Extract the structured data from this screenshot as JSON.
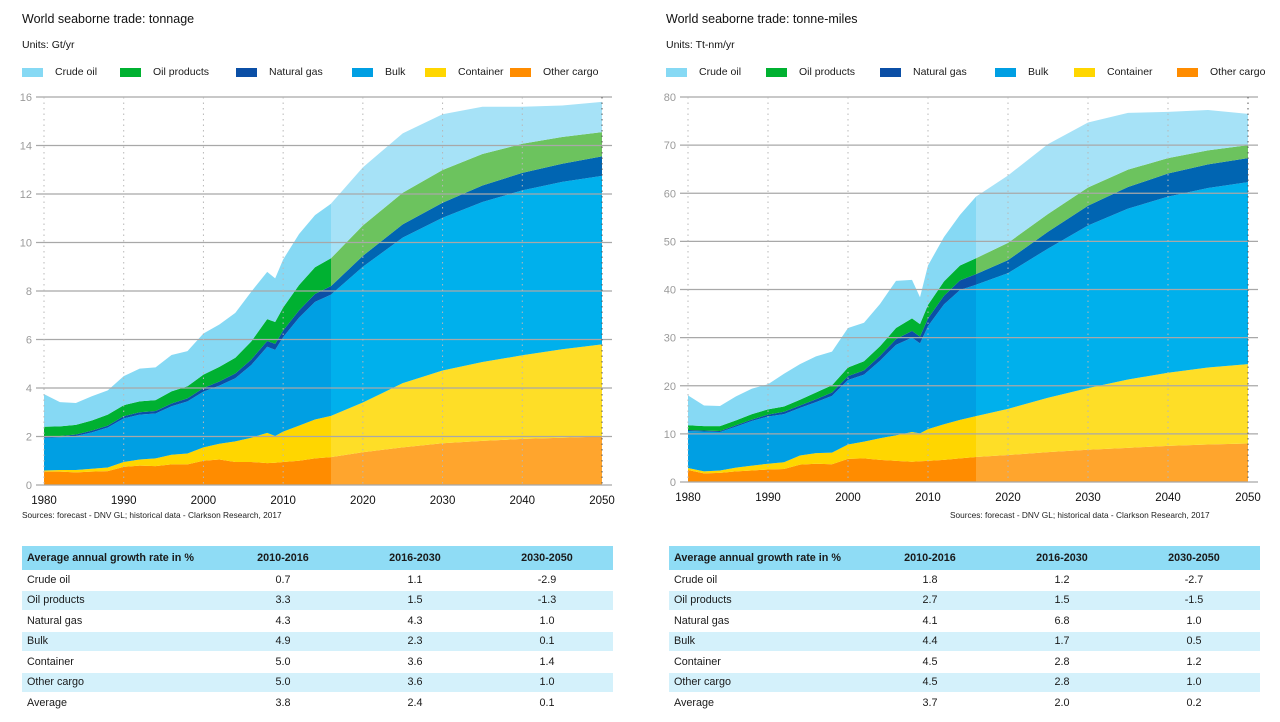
{
  "legend": [
    {
      "key": "crude",
      "label": "Crude oil",
      "color": "#86d9f4"
    },
    {
      "key": "oilprod",
      "label": "Oil products",
      "color": "#00b131"
    },
    {
      "key": "gas",
      "label": "Natural gas",
      "color": "#0b4fa6"
    },
    {
      "key": "bulk",
      "label": "Bulk",
      "color": "#009fe3"
    },
    {
      "key": "container",
      "label": "Container",
      "color": "#ffd600"
    },
    {
      "key": "other",
      "label": "Other cargo",
      "color": "#ff8c00"
    }
  ],
  "forecast_colors": {
    "crude": "#a6e2f7",
    "oilprod": "#6cc35e",
    "gas": "#0065b2",
    "bulk": "#00b0ec",
    "container": "#fede27",
    "other": "#ffa52d"
  },
  "left": {
    "title": "World seaborne trade: tonnage",
    "units": "Units: Gt/yr",
    "source": "Sources: forecast - DNV GL; historical data - Clarkson Research, 2017",
    "table": {
      "headers": [
        "Average annual growth rate in %",
        "2010-2016",
        "2016-2030",
        "2030-2050"
      ],
      "rows": [
        [
          "Crude oil",
          "0.7",
          "1.1",
          "-2.9"
        ],
        [
          "Oil products",
          "3.3",
          "1.5",
          "-1.3"
        ],
        [
          "Natural gas",
          "4.3",
          "4.3",
          "1.0"
        ],
        [
          "Bulk",
          "4.9",
          "2.3",
          "0.1"
        ],
        [
          "Container",
          "5.0",
          "3.6",
          "1.4"
        ],
        [
          "Other cargo",
          "5.0",
          "3.6",
          "1.0"
        ],
        [
          "Average",
          "3.8",
          "2.4",
          "0.1"
        ]
      ]
    }
  },
  "right": {
    "title": "World seaborne trade: tonne-miles",
    "units": "Units: Tt-nm/yr",
    "source": "Sources: forecast - DNV GL; historical data - Clarkson Research, 2017",
    "table": {
      "headers": [
        "Average annual growth rate in %",
        "2010-2016",
        "2016-2030",
        "2030-2050"
      ],
      "rows": [
        [
          "Crude oil",
          "1.8",
          "1.2",
          "-2.7"
        ],
        [
          "Oil products",
          "2.7",
          "1.5",
          "-1.5"
        ],
        [
          "Natural gas",
          "4.1",
          "6.8",
          "1.0"
        ],
        [
          "Bulk",
          "4.4",
          "1.7",
          "0.5"
        ],
        [
          "Container",
          "4.5",
          "2.8",
          "1.2"
        ],
        [
          "Other cargo",
          "4.5",
          "2.8",
          "1.0"
        ],
        [
          "Average",
          "3.7",
          "2.0",
          "0.2"
        ]
      ]
    }
  },
  "chart_data": [
    {
      "type": "area",
      "stacked": true,
      "title": "World seaborne trade: tonnage",
      "ylabel": "Gt/yr",
      "xlabel": "",
      "xlim": [
        1980,
        2050
      ],
      "ylim": [
        0,
        16
      ],
      "xticks": [
        1980,
        1990,
        2000,
        2010,
        2020,
        2030,
        2040,
        2050
      ],
      "yticks": [
        0,
        2,
        4,
        6,
        8,
        10,
        12,
        14,
        16
      ],
      "grid": "horizontal solid, vertical dotted",
      "forecast_start": 2016,
      "legend_position": "top",
      "x": [
        1980,
        1982,
        1984,
        1986,
        1988,
        1990,
        1992,
        1994,
        1996,
        1998,
        2000,
        2002,
        2004,
        2006,
        2008,
        2009,
        2010,
        2012,
        2014,
        2016,
        2020,
        2025,
        2030,
        2035,
        2040,
        2045,
        2050
      ],
      "series": [
        {
          "name": "Other cargo",
          "values": [
            0.55,
            0.55,
            0.52,
            0.55,
            0.57,
            0.75,
            0.8,
            0.78,
            0.85,
            0.85,
            1.0,
            1.05,
            0.95,
            0.95,
            0.9,
            0.92,
            0.95,
            1.0,
            1.1,
            1.15,
            1.35,
            1.55,
            1.72,
            1.82,
            1.9,
            1.95,
            2.0
          ]
        },
        {
          "name": "Container",
          "values": [
            0.05,
            0.07,
            0.1,
            0.12,
            0.15,
            0.2,
            0.25,
            0.32,
            0.4,
            0.45,
            0.55,
            0.65,
            0.85,
            1.0,
            1.25,
            1.1,
            1.25,
            1.45,
            1.6,
            1.7,
            2.05,
            2.65,
            3.0,
            3.25,
            3.45,
            3.65,
            3.8
          ]
        },
        {
          "name": "Bulk",
          "values": [
            1.35,
            1.35,
            1.4,
            1.5,
            1.65,
            1.8,
            1.85,
            1.85,
            2.0,
            2.15,
            2.3,
            2.4,
            2.6,
            3.0,
            3.55,
            3.55,
            3.9,
            4.45,
            4.85,
            5.0,
            5.6,
            6.0,
            6.3,
            6.6,
            6.8,
            6.9,
            6.95
          ]
        },
        {
          "name": "Natural gas",
          "values": [
            0.05,
            0.05,
            0.06,
            0.07,
            0.08,
            0.09,
            0.1,
            0.1,
            0.11,
            0.12,
            0.15,
            0.17,
            0.2,
            0.22,
            0.24,
            0.25,
            0.27,
            0.3,
            0.33,
            0.35,
            0.45,
            0.55,
            0.62,
            0.68,
            0.72,
            0.75,
            0.8
          ]
        },
        {
          "name": "Oil products",
          "values": [
            0.4,
            0.4,
            0.4,
            0.42,
            0.45,
            0.45,
            0.45,
            0.45,
            0.5,
            0.5,
            0.55,
            0.6,
            0.65,
            0.75,
            0.9,
            0.9,
            0.95,
            1.05,
            1.1,
            1.15,
            1.25,
            1.3,
            1.35,
            1.3,
            1.2,
            1.1,
            1.0
          ]
        },
        {
          "name": "Crude oil",
          "values": [
            1.35,
            1.0,
            0.9,
            1.0,
            1.0,
            1.2,
            1.35,
            1.35,
            1.5,
            1.45,
            1.7,
            1.75,
            1.85,
            2.05,
            1.95,
            1.8,
            1.98,
            2.1,
            2.15,
            2.25,
            2.4,
            2.45,
            2.3,
            1.95,
            1.53,
            1.3,
            1.25
          ]
        }
      ],
      "source": "Sources: forecast - DNV GL; historical data - Clarkson Research, 2017"
    },
    {
      "type": "area",
      "stacked": true,
      "title": "World seaborne trade: tonne-miles",
      "ylabel": "Tt-nm/yr",
      "xlabel": "",
      "xlim": [
        1980,
        2050
      ],
      "ylim": [
        0,
        80
      ],
      "xticks": [
        1980,
        1990,
        2000,
        2010,
        2020,
        2030,
        2040,
        2050
      ],
      "yticks": [
        0,
        10,
        20,
        30,
        40,
        50,
        60,
        70,
        80
      ],
      "grid": "horizontal solid, vertical dotted",
      "forecast_start": 2016,
      "legend_position": "top",
      "x": [
        1980,
        1982,
        1984,
        1986,
        1988,
        1990,
        1992,
        1994,
        1996,
        1998,
        2000,
        2002,
        2004,
        2006,
        2008,
        2009,
        2010,
        2012,
        2014,
        2016,
        2020,
        2025,
        2030,
        2035,
        2040,
        2045,
        2050
      ],
      "series": [
        {
          "name": "Other cargo",
          "values": [
            2.5,
            1.8,
            1.9,
            2.2,
            2.4,
            2.6,
            2.7,
            3.6,
            3.8,
            3.7,
            4.8,
            4.9,
            4.6,
            4.4,
            4.2,
            4.3,
            4.4,
            4.6,
            4.9,
            5.2,
            5.6,
            6.2,
            6.7,
            7.1,
            7.5,
            7.8,
            8.0
          ]
        },
        {
          "name": "Container",
          "values": [
            0.4,
            0.4,
            0.5,
            0.8,
            1.0,
            1.2,
            1.4,
            1.9,
            2.2,
            2.4,
            3.0,
            3.5,
            4.5,
            5.3,
            6.2,
            5.8,
            6.6,
            7.4,
            8.0,
            8.5,
            9.6,
            11.3,
            12.8,
            14.2,
            15.2,
            16.0,
            16.5
          ]
        },
        {
          "name": "Bulk",
          "values": [
            7.7,
            8.3,
            8.0,
            8.5,
            9.3,
            9.8,
            10.0,
            9.9,
            10.6,
            11.8,
            13.4,
            13.9,
            16.1,
            18.8,
            19.6,
            18.7,
            21.4,
            24.9,
            27.0,
            27.3,
            28.2,
            31.0,
            33.8,
            35.5,
            36.6,
            37.3,
            37.8
          ]
        },
        {
          "name": "Natural gas",
          "values": [
            0.2,
            0.2,
            0.2,
            0.3,
            0.3,
            0.4,
            0.5,
            0.5,
            0.6,
            0.7,
            0.8,
            0.9,
            1.0,
            1.2,
            1.4,
            1.4,
            1.6,
            1.8,
            2.0,
            2.2,
            2.7,
            3.5,
            4.1,
            4.5,
            4.8,
            4.9,
            5.0
          ]
        },
        {
          "name": "Oil products",
          "values": [
            1.0,
            0.9,
            1.0,
            1.0,
            1.1,
            1.1,
            1.1,
            1.2,
            1.4,
            1.5,
            1.8,
            1.9,
            2.0,
            2.3,
            2.6,
            2.6,
            2.8,
            3.0,
            3.1,
            3.3,
            3.6,
            3.7,
            3.8,
            3.6,
            3.2,
            2.9,
            2.7
          ]
        },
        {
          "name": "Crude oil",
          "values": [
            6.2,
            4.3,
            4.2,
            5.0,
            5.3,
            5.2,
            6.8,
            7.4,
            7.5,
            7.0,
            8.2,
            8.0,
            8.8,
            9.8,
            8.0,
            5.6,
            8.2,
            9.2,
            10.5,
            12.8,
            14.0,
            14.5,
            13.5,
            11.8,
            9.6,
            8.4,
            6.5
          ]
        }
      ],
      "source": "Sources: forecast - DNV GL; historical data - Clarkson Research, 2017"
    }
  ]
}
